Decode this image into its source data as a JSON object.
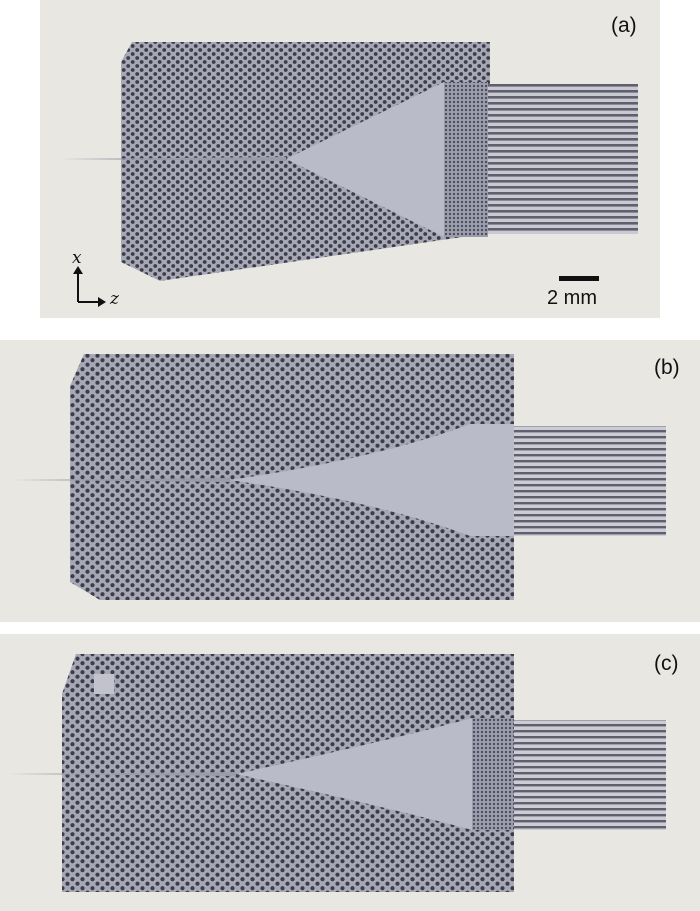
{
  "figure": {
    "panels": [
      {
        "label": "(a)"
      },
      {
        "label": "(b)"
      },
      {
        "label": "(c)"
      }
    ],
    "scale_bar": {
      "text": "2 mm"
    },
    "axes": {
      "x": "x",
      "z": "z"
    },
    "colors": {
      "background": "#e9e7e2",
      "plate": "#a6a8b6",
      "plate_light": "#b9bbc8",
      "holes": "#3d3d49",
      "fingers": "#62636f"
    }
  }
}
